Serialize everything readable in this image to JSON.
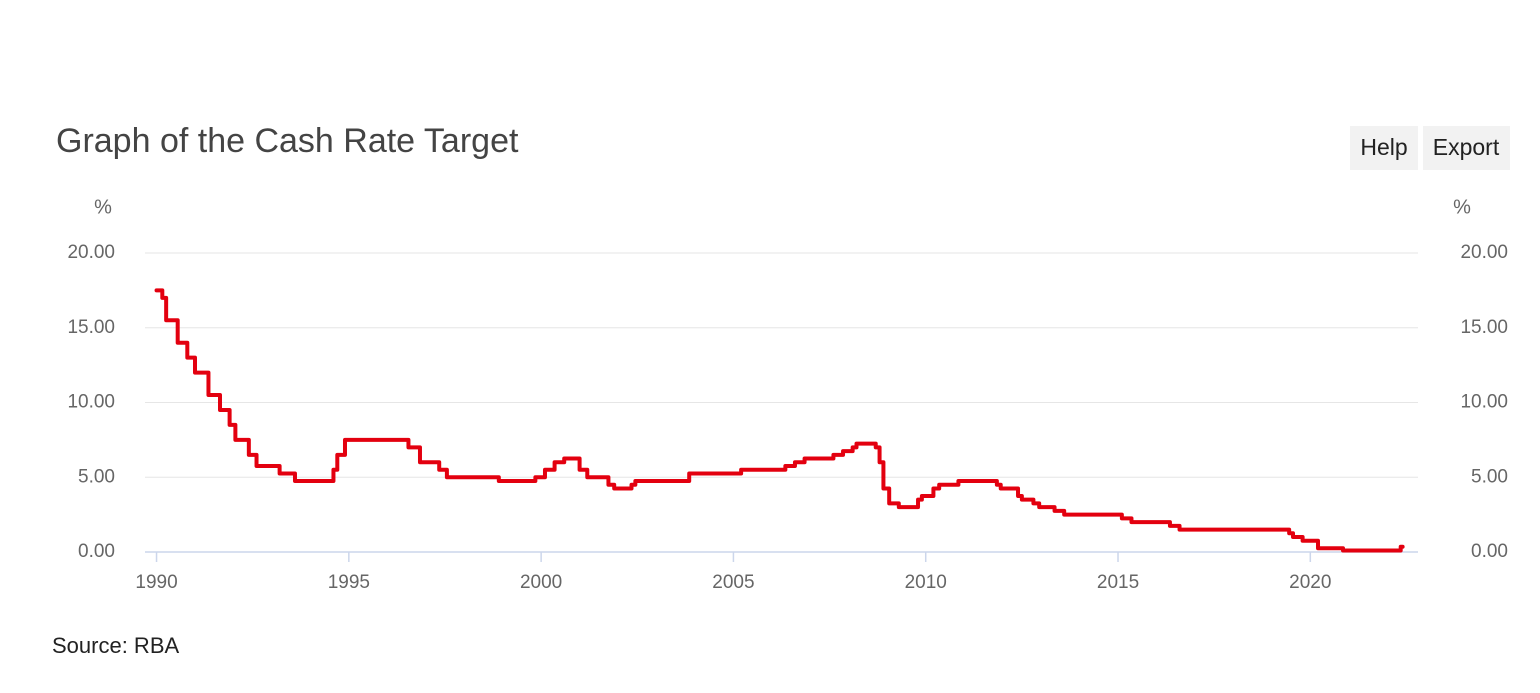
{
  "chart_data": {
    "type": "line",
    "title": "Graph of the Cash Rate Target",
    "buttons": [
      "Help",
      "Export"
    ],
    "y_axis_label": "%",
    "y2_axis_label": "%",
    "source": "Source: RBA",
    "color": "#e3000f",
    "grid": true,
    "xlim": [
      1989.7,
      2022.8
    ],
    "xticks": [
      1990,
      1995,
      2000,
      2005,
      2010,
      2015,
      2020
    ],
    "ylim": [
      0,
      20
    ],
    "yticks": [
      {
        "value": 0,
        "label": "0.00"
      },
      {
        "value": 5,
        "label": "5.00"
      },
      {
        "value": 10,
        "label": "10.00"
      },
      {
        "value": 15,
        "label": "15.00"
      },
      {
        "value": 20,
        "label": "20.00"
      }
    ],
    "y2lim": [
      0,
      20
    ],
    "y2ticks": [
      {
        "value": 0,
        "label": "0.00"
      },
      {
        "value": 5,
        "label": "5.00"
      },
      {
        "value": 10,
        "label": "10.00"
      },
      {
        "value": 15,
        "label": "15.00"
      },
      {
        "value": 20,
        "label": "20.00"
      }
    ],
    "x": [
      1990.0,
      1990.15,
      1990.15,
      1990.25,
      1990.25,
      1990.55,
      1990.55,
      1990.8,
      1990.8,
      1991.0,
      1991.0,
      1991.35,
      1991.35,
      1991.65,
      1991.65,
      1991.9,
      1991.9,
      1992.05,
      1992.05,
      1992.4,
      1992.4,
      1992.6,
      1992.6,
      1993.2,
      1993.2,
      1993.6,
      1993.6,
      1994.6,
      1994.6,
      1994.7,
      1994.7,
      1994.9,
      1994.9,
      1996.55,
      1996.55,
      1996.85,
      1996.85,
      1997.35,
      1997.35,
      1997.55,
      1997.55,
      1998.9,
      1998.9,
      1999.85,
      1999.85,
      2000.1,
      2000.1,
      2000.35,
      2000.35,
      2000.6,
      2000.6,
      2001.0,
      2001.0,
      2001.2,
      2001.2,
      2001.75,
      2001.75,
      2001.9,
      2001.9,
      2002.35,
      2002.35,
      2002.45,
      2002.45,
      2003.85,
      2003.85,
      2005.2,
      2005.2,
      2006.35,
      2006.35,
      2006.6,
      2006.6,
      2006.85,
      2006.85,
      2007.6,
      2007.6,
      2007.85,
      2007.85,
      2008.1,
      2008.1,
      2008.2,
      2008.2,
      2008.7,
      2008.7,
      2008.8,
      2008.8,
      2008.9,
      2008.9,
      2009.05,
      2009.05,
      2009.3,
      2009.3,
      2009.8,
      2009.8,
      2009.9,
      2009.9,
      2010.2,
      2010.2,
      2010.35,
      2010.35,
      2010.85,
      2010.85,
      2011.85,
      2011.85,
      2011.95,
      2011.95,
      2012.4,
      2012.4,
      2012.5,
      2012.5,
      2012.8,
      2012.8,
      2012.95,
      2012.95,
      2013.35,
      2013.35,
      2013.6,
      2013.6,
      2015.1,
      2015.1,
      2015.35,
      2015.35,
      2016.35,
      2016.35,
      2016.6,
      2016.6,
      2019.45,
      2019.45,
      2019.55,
      2019.55,
      2019.8,
      2019.8,
      2020.2,
      2020.2,
      2020.85,
      2020.85,
      2022.35,
      2022.35,
      2022.4
    ],
    "values": [
      17.5,
      17.5,
      17,
      17,
      15.5,
      15.5,
      14,
      14,
      13,
      13,
      12,
      12,
      10.5,
      10.5,
      9.5,
      9.5,
      8.5,
      8.5,
      7.5,
      7.5,
      6.5,
      6.5,
      5.75,
      5.75,
      5.25,
      5.25,
      4.75,
      4.75,
      5.5,
      5.5,
      6.5,
      6.5,
      7.5,
      7.5,
      7,
      7,
      6,
      6,
      5.5,
      5.5,
      5,
      5,
      4.75,
      4.75,
      5,
      5,
      5.5,
      5.5,
      6,
      6,
      6.25,
      6.25,
      5.5,
      5.5,
      5,
      5,
      4.5,
      4.5,
      4.25,
      4.25,
      4.5,
      4.5,
      4.75,
      4.75,
      5.25,
      5.25,
      5.5,
      5.5,
      5.75,
      5.75,
      6,
      6,
      6.25,
      6.25,
      6.5,
      6.5,
      6.75,
      6.75,
      7,
      7,
      7.25,
      7.25,
      7,
      7,
      6,
      6,
      4.25,
      4.25,
      3.25,
      3.25,
      3,
      3,
      3.5,
      3.5,
      3.75,
      3.75,
      4.25,
      4.25,
      4.5,
      4.5,
      4.75,
      4.75,
      4.5,
      4.5,
      4.25,
      4.25,
      3.75,
      3.75,
      3.5,
      3.5,
      3.25,
      3.25,
      3,
      3,
      2.75,
      2.75,
      2.5,
      2.5,
      2.25,
      2.25,
      2,
      2,
      1.75,
      1.75,
      1.5,
      1.5,
      1.25,
      1.25,
      1,
      1,
      0.75,
      0.75,
      0.25,
      0.25,
      0.1,
      0.1,
      0.35,
      0.35
    ]
  }
}
